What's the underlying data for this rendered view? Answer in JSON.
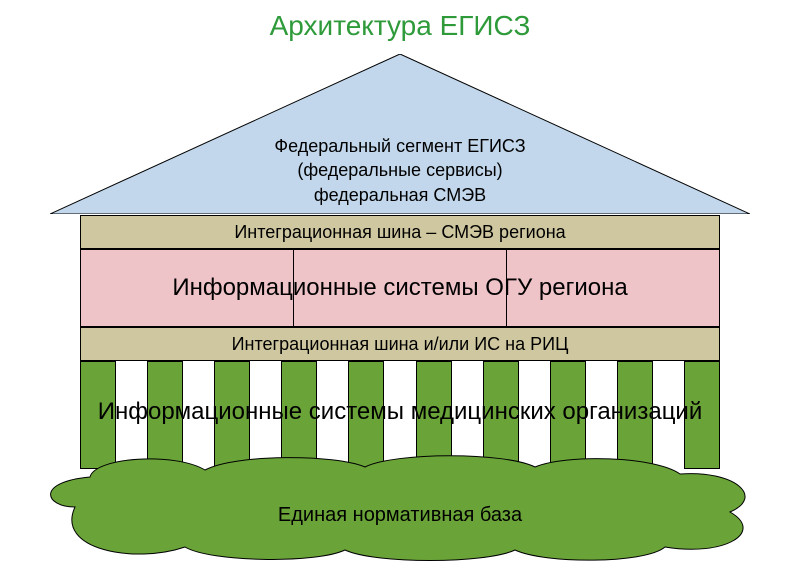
{
  "type": "infographic",
  "title": {
    "text": "Архитектура  ЕГИСЗ",
    "color": "#2e9a3a",
    "fontsize": 28
  },
  "roof": {
    "fill": "#c2d7eb",
    "stroke": "#000000",
    "lines": [
      "Федеральный сегмент ЕГИСЗ",
      "(федеральные сервисы)",
      "федеральная СМЭВ"
    ],
    "text_fontsize": 18,
    "text_color": "#000000"
  },
  "bands": {
    "band1": {
      "text": "Интеграционная шина – СМЭВ региона",
      "fill": "#cfc79f",
      "fontsize": 18
    },
    "band2": {
      "text": "Информационные системы ОГУ региона",
      "fill": "#efc4c9",
      "fontsize": 24,
      "dividers_at": [
        0.333,
        0.666
      ]
    },
    "band3": {
      "text": "Интеграционная шина и/или ИС на РИЦ",
      "fill": "#cfc79f",
      "fontsize": 18
    }
  },
  "pillars": {
    "count": 10,
    "fill": "#6aa438",
    "label": "Информационные системы медицинских организаций",
    "label_fontsize": 24
  },
  "cloud": {
    "fill": "#6aa438",
    "stroke": "#000000",
    "label": "Единая нормативная база",
    "label_fontsize": 20
  },
  "background_color": "#ffffff"
}
